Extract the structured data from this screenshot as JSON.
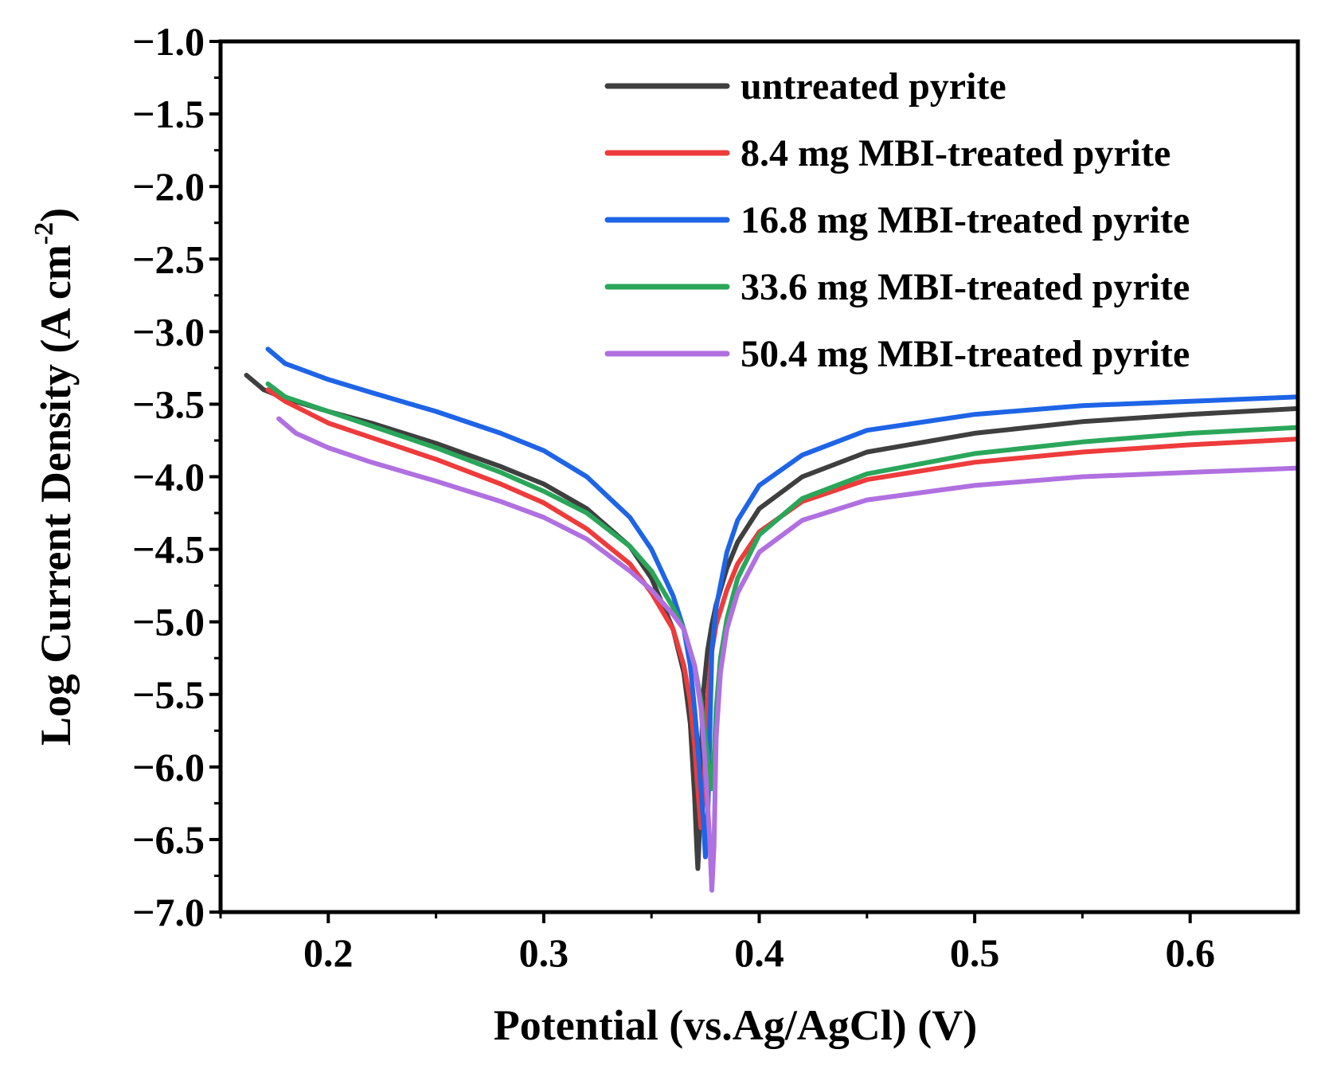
{
  "chart_data": {
    "type": "line",
    "title": "",
    "xlabel": "Potential (vs.Ag/AgCl) (V)",
    "ylabel_main": "Log Current Density (A cm",
    "ylabel_sup": "-2",
    "ylabel_end": ")",
    "xlim": [
      0.15,
      0.65
    ],
    "ylim": [
      -7.0,
      -1.0
    ],
    "xticks": [
      0.2,
      0.3,
      0.4,
      0.5,
      0.6
    ],
    "xtick_labels": [
      "0.2",
      "0.3",
      "0.4",
      "0.5",
      "0.6"
    ],
    "yticks": [
      -1.0,
      -1.5,
      -2.0,
      -2.5,
      -3.0,
      -3.5,
      -4.0,
      -4.5,
      -5.0,
      -5.5,
      -6.0,
      -6.5,
      -7.0
    ],
    "ytick_labels": [
      "−1.0",
      "−1.5",
      "−2.0",
      "−2.5",
      "−3.0",
      "−3.5",
      "−4.0",
      "−4.5",
      "−5.0",
      "−5.5",
      "−6.0",
      "−6.5",
      "−7.0"
    ],
    "grid": false,
    "legend_position": "top-right",
    "series": [
      {
        "name": "untreated pyrite",
        "color": "#3f3f3f",
        "x": [
          0.162,
          0.17,
          0.18,
          0.2,
          0.22,
          0.25,
          0.28,
          0.3,
          0.32,
          0.34,
          0.35,
          0.36,
          0.365,
          0.368,
          0.37,
          0.371,
          0.3715,
          0.372,
          0.373,
          0.374,
          0.376,
          0.378,
          0.38,
          0.385,
          0.39,
          0.4,
          0.42,
          0.45,
          0.5,
          0.55,
          0.6,
          0.65
        ],
        "y": [
          -3.3,
          -3.4,
          -3.46,
          -3.55,
          -3.63,
          -3.77,
          -3.93,
          -4.05,
          -4.22,
          -4.48,
          -4.7,
          -5.05,
          -5.35,
          -5.7,
          -6.2,
          -6.55,
          -6.7,
          -6.55,
          -6.0,
          -5.5,
          -5.2,
          -5.02,
          -4.88,
          -4.63,
          -4.45,
          -4.22,
          -4.0,
          -3.83,
          -3.7,
          -3.62,
          -3.57,
          -3.53
        ]
      },
      {
        "name": "8.4 mg MBI-treated pyrite",
        "color": "#ee3b3b",
        "x": [
          0.172,
          0.18,
          0.2,
          0.22,
          0.25,
          0.28,
          0.3,
          0.32,
          0.34,
          0.35,
          0.36,
          0.365,
          0.368,
          0.37,
          0.372,
          0.373,
          0.374,
          0.375,
          0.376,
          0.378,
          0.38,
          0.385,
          0.39,
          0.4,
          0.42,
          0.45,
          0.5,
          0.55,
          0.6,
          0.65
        ],
        "y": [
          -3.4,
          -3.48,
          -3.63,
          -3.73,
          -3.88,
          -4.05,
          -4.18,
          -4.36,
          -4.6,
          -4.8,
          -5.05,
          -5.3,
          -5.55,
          -5.85,
          -6.25,
          -6.42,
          -6.25,
          -5.9,
          -5.55,
          -5.2,
          -5.02,
          -4.78,
          -4.6,
          -4.38,
          -4.17,
          -4.02,
          -3.9,
          -3.83,
          -3.78,
          -3.74
        ]
      },
      {
        "name": "16.8 mg MBI-treated pyrite",
        "color": "#1e64e6",
        "x": [
          0.172,
          0.18,
          0.2,
          0.22,
          0.25,
          0.28,
          0.3,
          0.32,
          0.34,
          0.35,
          0.36,
          0.365,
          0.368,
          0.37,
          0.372,
          0.374,
          0.375,
          0.376,
          0.377,
          0.378,
          0.38,
          0.385,
          0.39,
          0.4,
          0.42,
          0.45,
          0.5,
          0.55,
          0.6,
          0.65
        ],
        "y": [
          -3.12,
          -3.22,
          -3.33,
          -3.42,
          -3.55,
          -3.7,
          -3.82,
          -4.0,
          -4.28,
          -4.5,
          -4.82,
          -5.05,
          -5.3,
          -5.6,
          -5.95,
          -6.35,
          -6.62,
          -6.4,
          -5.8,
          -5.2,
          -4.9,
          -4.52,
          -4.3,
          -4.06,
          -3.85,
          -3.68,
          -3.57,
          -3.51,
          -3.48,
          -3.45
        ]
      },
      {
        "name": "33.6 mg MBI-treated pyrite",
        "color": "#2aa65a",
        "x": [
          0.172,
          0.18,
          0.2,
          0.22,
          0.25,
          0.28,
          0.3,
          0.32,
          0.34,
          0.35,
          0.36,
          0.365,
          0.37,
          0.373,
          0.375,
          0.377,
          0.378,
          0.379,
          0.38,
          0.382,
          0.385,
          0.39,
          0.4,
          0.42,
          0.45,
          0.5,
          0.55,
          0.6,
          0.65
        ],
        "y": [
          -3.36,
          -3.45,
          -3.55,
          -3.65,
          -3.8,
          -3.97,
          -4.1,
          -4.25,
          -4.48,
          -4.65,
          -4.9,
          -5.05,
          -5.3,
          -5.55,
          -5.8,
          -6.05,
          -6.15,
          -5.95,
          -5.6,
          -5.25,
          -4.98,
          -4.7,
          -4.4,
          -4.15,
          -3.98,
          -3.84,
          -3.76,
          -3.7,
          -3.66
        ]
      },
      {
        "name": "50.4 mg MBI-treated pyrite",
        "color": "#b070e0",
        "x": [
          0.177,
          0.185,
          0.2,
          0.22,
          0.25,
          0.28,
          0.3,
          0.32,
          0.34,
          0.35,
          0.36,
          0.365,
          0.37,
          0.373,
          0.375,
          0.377,
          0.378,
          0.379,
          0.38,
          0.382,
          0.385,
          0.39,
          0.4,
          0.42,
          0.45,
          0.5,
          0.55,
          0.6,
          0.65
        ],
        "y": [
          -3.6,
          -3.7,
          -3.8,
          -3.9,
          -4.03,
          -4.17,
          -4.28,
          -4.43,
          -4.65,
          -4.78,
          -4.95,
          -5.05,
          -5.3,
          -5.6,
          -6.0,
          -6.5,
          -6.85,
          -6.55,
          -5.8,
          -5.35,
          -5.05,
          -4.8,
          -4.52,
          -4.3,
          -4.16,
          -4.06,
          -4.0,
          -3.97,
          -3.94
        ]
      }
    ]
  }
}
